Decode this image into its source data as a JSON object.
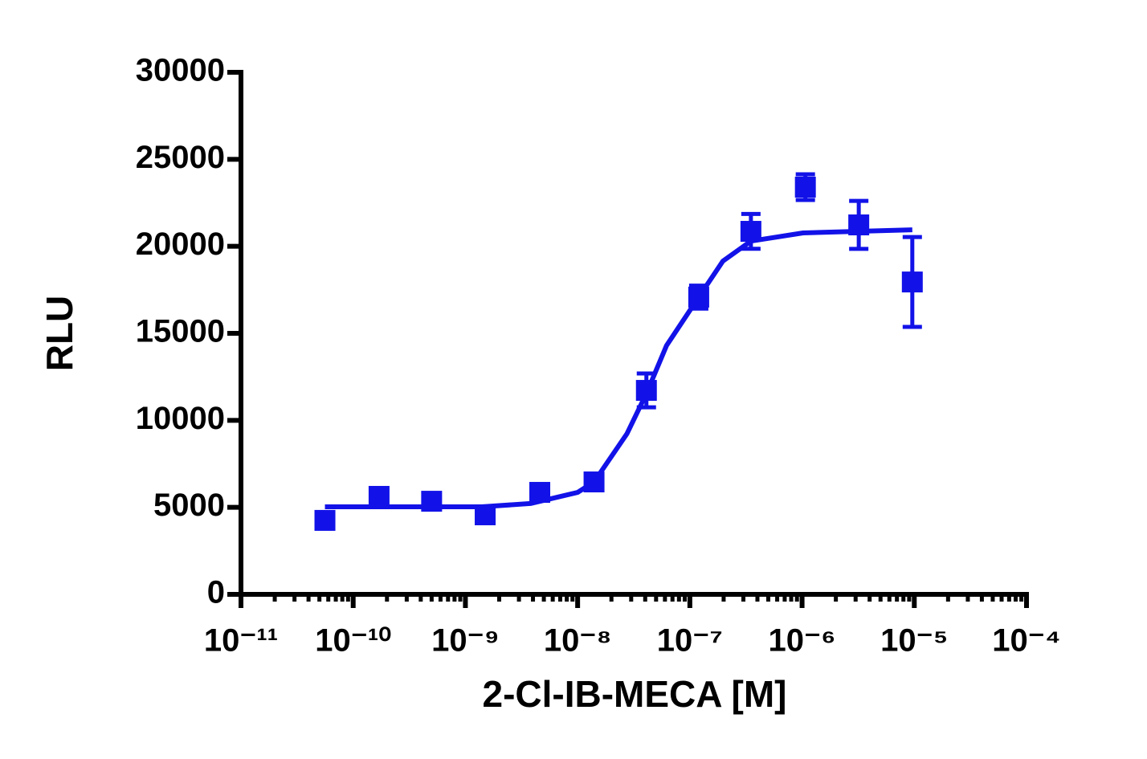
{
  "chart_data": {
    "type": "scatter",
    "x_label": "2-Cl-IB-MECA [M]",
    "y_label": "RLU",
    "log_x": true,
    "xlim": [
      1e-11,
      0.0001
    ],
    "xticks": [
      {
        "value": 1e-11,
        "label": "10⁻¹¹"
      },
      {
        "value": 1e-10,
        "label": "10⁻¹⁰"
      },
      {
        "value": 1e-09,
        "label": "10⁻⁹"
      },
      {
        "value": 1e-08,
        "label": "10⁻⁸"
      },
      {
        "value": 1e-07,
        "label": "10⁻⁷"
      },
      {
        "value": 1e-06,
        "label": "10⁻⁶"
      },
      {
        "value": 1e-05,
        "label": "10⁻⁵"
      },
      {
        "value": 0.0001,
        "label": "10⁻⁴"
      }
    ],
    "ylim": [
      0,
      30000
    ],
    "yticks": [
      0,
      5000,
      10000,
      15000,
      20000,
      25000,
      30000
    ],
    "series": [
      {
        "color": "#1212e8",
        "x": [
          5.6e-11,
          1.7e-10,
          5e-10,
          1.5e-09,
          4.6e-09,
          1.4e-08,
          4.1e-08,
          1.2e-07,
          3.5e-07,
          1.07e-06,
          3.2e-06,
          9.6e-06
        ],
        "values": [
          4250,
          5630,
          5350,
          4570,
          5860,
          6460,
          11720,
          17080,
          20860,
          23400,
          21230,
          17950
        ],
        "errors": [
          null,
          null,
          null,
          null,
          null,
          null,
          970,
          660,
          1000,
          740,
          1380,
          2580
        ]
      }
    ],
    "fit": {
      "color": "#1212e8",
      "x": [
        5.6e-11,
        1.4e-09,
        3.8e-09,
        1e-08,
        1.4e-08,
        2.75e-08,
        4.1e-08,
        6.2e-08,
        1.2e-07,
        1.97e-07,
        3.5e-07,
        1.02e-06,
        9.6e-06
      ],
      "values": [
        5030,
        5030,
        5220,
        5860,
        6460,
        9230,
        11540,
        14300,
        17080,
        19150,
        20300,
        20770,
        20950
      ]
    }
  }
}
